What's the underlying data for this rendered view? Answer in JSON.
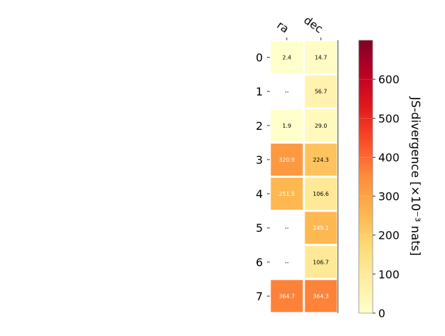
{
  "chart_data": {
    "type": "heatmap",
    "columns": [
      "ra",
      "dec"
    ],
    "rows": [
      "0",
      "1",
      "2",
      "3",
      "4",
      "5",
      "6",
      "7"
    ],
    "values": [
      [
        2.4,
        14.7
      ],
      [
        null,
        56.7
      ],
      [
        1.9,
        29.0
      ],
      [
        320.9,
        224.3
      ],
      [
        251.5,
        106.6
      ],
      [
        null,
        249.1
      ],
      [
        null,
        106.7
      ],
      [
        364.7,
        364.3
      ]
    ],
    "cell_labels": [
      [
        "2.4",
        "14.7"
      ],
      [
        "--",
        "56.7"
      ],
      [
        "1.9",
        "29.0"
      ],
      [
        "320.9",
        "224.3"
      ],
      [
        "251.5",
        "106.6"
      ],
      [
        "--",
        "249.1"
      ],
      [
        "--",
        "106.7"
      ],
      [
        "364.7",
        "364.3"
      ]
    ],
    "colorbar": {
      "label": "JS-divergence [×10⁻³ nats]",
      "range": [
        0,
        700
      ],
      "ticks": [
        "0",
        "100",
        "200",
        "300",
        "400",
        "500",
        "600"
      ],
      "colormap": "YlOrRd"
    }
  }
}
